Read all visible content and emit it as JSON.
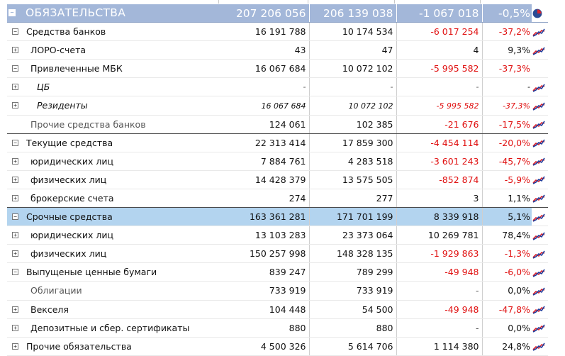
{
  "colors": {
    "header_bg": "#a3b7d9",
    "selected_bg": "#b3d4ef",
    "negative": "#e01010",
    "sparkline_red": "#d9232e",
    "sparkline_blue": "#1e3c9c"
  },
  "header": {
    "toggle": "−",
    "label": "ОБЯЗАТЕЛЬСТВА",
    "v1": "207 206 056",
    "v2": "206 139 038",
    "diff": "-1 067 018",
    "pct": "-0,5%",
    "icon": "pie-chart-icon"
  },
  "rows": [
    {
      "name": "Средства банков",
      "toggle": "−",
      "v1": "16 191 788",
      "v2": "10 174 534",
      "diff": "-6 017 254",
      "pct": "-37,2%",
      "negative": true,
      "level": "l0",
      "spark": true
    },
    {
      "name": "ЛОРО-счета",
      "toggle": "+",
      "v1": "43",
      "v2": "47",
      "diff": "4",
      "pct": "9,3%",
      "negative": false,
      "level": "l1",
      "spark": true
    },
    {
      "name": "Привлеченные МБК",
      "toggle": "−",
      "v1": "16 067 684",
      "v2": "10 072 102",
      "diff": "-5 995 582",
      "pct": "-37,3%",
      "negative": true,
      "level": "l1",
      "spark": false
    },
    {
      "name": "ЦБ",
      "toggle": "+",
      "v1": "-",
      "v2": "-",
      "diff": "-",
      "pct": "-",
      "negative": false,
      "level": "l2",
      "spark": true
    },
    {
      "name": "Резиденты",
      "toggle": "+",
      "v1": "16 067 684",
      "v2": "10 072 102",
      "diff": "-5 995 582",
      "pct": "-37,3%",
      "negative": true,
      "level": "l2",
      "spark": true
    },
    {
      "name": "Прочие средства банков",
      "toggle": "",
      "v1": "124 061",
      "v2": "102 385",
      "diff": "-21 676",
      "pct": "-17,5%",
      "negative": true,
      "level": "l1n",
      "spark": true
    },
    {
      "name": "Текущие средства",
      "toggle": "−",
      "v1": "22 313 414",
      "v2": "17 859 300",
      "diff": "-4 454 114",
      "pct": "-20,0%",
      "negative": true,
      "level": "l0",
      "spark": true
    },
    {
      "name": "юридических лиц",
      "toggle": "+",
      "v1": "7 884 761",
      "v2": "4 283 518",
      "diff": "-3 601 243",
      "pct": "-45,7%",
      "negative": true,
      "level": "l1",
      "spark": true
    },
    {
      "name": "физических лиц",
      "toggle": "+",
      "v1": "14 428 379",
      "v2": "13 575 505",
      "diff": "-852 874",
      "pct": "-5,9%",
      "negative": true,
      "level": "l1",
      "spark": true
    },
    {
      "name": "брокерские счета",
      "toggle": "+",
      "v1": "274",
      "v2": "277",
      "diff": "3",
      "pct": "1,1%",
      "negative": false,
      "level": "l1",
      "spark": true
    },
    {
      "name": "Срочные средства",
      "toggle": "−",
      "v1": "163 361 281",
      "v2": "171 701 199",
      "diff": "8 339 918",
      "pct": "5,1%",
      "negative": false,
      "level": "l0",
      "spark": true,
      "selected": true
    },
    {
      "name": "юридических лиц",
      "toggle": "+",
      "v1": "13 103 283",
      "v2": "23 373 064",
      "diff": "10 269 781",
      "pct": "78,4%",
      "negative": false,
      "level": "l1",
      "spark": true
    },
    {
      "name": "физических лиц",
      "toggle": "+",
      "v1": "150 257 998",
      "v2": "148 328 135",
      "diff": "-1 929 863",
      "pct": "-1,3%",
      "negative": true,
      "level": "l1",
      "spark": true
    },
    {
      "name": "Выпущеные ценные бумаги",
      "toggle": "−",
      "v1": "839 247",
      "v2": "789 299",
      "diff": "-49 948",
      "pct": "-6,0%",
      "negative": true,
      "level": "l0",
      "spark": true
    },
    {
      "name": "Облигации",
      "toggle": "",
      "v1": "733 919",
      "v2": "733 919",
      "diff": "-",
      "pct": "0,0%",
      "negative": false,
      "level": "l1n",
      "spark": true
    },
    {
      "name": "Векселя",
      "toggle": "+",
      "v1": "104 448",
      "v2": "54 500",
      "diff": "-49 948",
      "pct": "-47,8%",
      "negative": true,
      "level": "l1",
      "spark": true
    },
    {
      "name": "Депозитные и сбер. сертификаты",
      "toggle": "+",
      "v1": "880",
      "v2": "880",
      "diff": "-",
      "pct": "0,0%",
      "negative": false,
      "level": "l1",
      "spark": true
    },
    {
      "name": "Прочие обязательства",
      "toggle": "+",
      "v1": "4 500 326",
      "v2": "5 614 706",
      "diff": "1 114 380",
      "pct": "24,8%",
      "negative": false,
      "level": "l0",
      "spark": true
    }
  ]
}
